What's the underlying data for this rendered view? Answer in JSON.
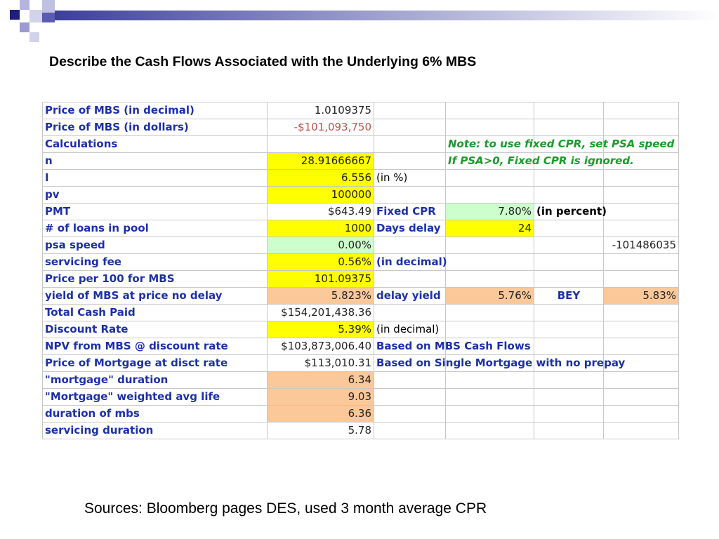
{
  "title": "Describe the Cash Flows Associated with the Underlying 6% MBS",
  "rows": [
    [
      "Price of MBS (in decimal)",
      "1.0109375",
      "",
      "",
      "",
      ""
    ],
    [
      "Price of MBS (in dollars)",
      "-$101,093,750",
      "",
      "",
      "",
      ""
    ],
    [
      "Calculations",
      "",
      "",
      "Note: to use fixed CPR, set PSA speed",
      "",
      ""
    ],
    [
      "n",
      "28.91666667",
      "",
      "If PSA>0, Fixed CPR is ignored.",
      "",
      ""
    ],
    [
      "I",
      "6.556",
      "(in %)",
      "",
      "",
      ""
    ],
    [
      "pv",
      "100000",
      "",
      "",
      "",
      ""
    ],
    [
      "PMT",
      "$643.49",
      "Fixed CPR",
      "7.80%",
      "(in percent)",
      ""
    ],
    [
      "# of loans in pool",
      "1000",
      "Days delay",
      "24",
      "",
      ""
    ],
    [
      "psa speed",
      "0.00%",
      "",
      "",
      "",
      "-101486035"
    ],
    [
      "servicing fee",
      "0.56%",
      "(in decimal)",
      "",
      "",
      ""
    ],
    [
      "Price  per 100 for MBS",
      "101.09375",
      "",
      "",
      "",
      ""
    ],
    [
      "yield of MBS at price no delay",
      "5.823%",
      "delay yield",
      "5.76%",
      "BEY",
      "5.83%"
    ],
    [
      "Total Cash Paid",
      "$154,201,438.36",
      "",
      "",
      "",
      ""
    ],
    [
      "Discount Rate",
      "5.39%",
      "(in decimal)",
      "",
      "",
      ""
    ],
    [
      "NPV from MBS @ discount rate",
      "$103,873,006.40",
      "Based on MBS Cash Flows",
      "",
      "",
      ""
    ],
    [
      "Price of Mortgage at disct rate",
      "$113,010.31",
      "Based on Single Mortgage with no prepay",
      "",
      "",
      ""
    ],
    [
      "\"mortgage\" duration",
      "6.34",
      "",
      "",
      "",
      ""
    ],
    [
      "\"Mortgage\" weighted avg life",
      "9.03",
      "",
      "",
      "",
      ""
    ],
    [
      "duration of mbs",
      "6.36",
      "",
      "",
      "",
      ""
    ],
    [
      "servicing duration",
      "5.78",
      "",
      "",
      "",
      ""
    ]
  ],
  "sources": "Sources: Bloomberg pages DES, used 3 month average CPR",
  "colors": {
    "label_blue": "#1c30a8",
    "yellow": "#ffff00",
    "light_green": "#ccffcc",
    "peach": "#fbc89a",
    "note_green": "#1a9c2a",
    "deco_navy": "#1f1f7a",
    "deco_lavender": "#9b9bcf"
  }
}
